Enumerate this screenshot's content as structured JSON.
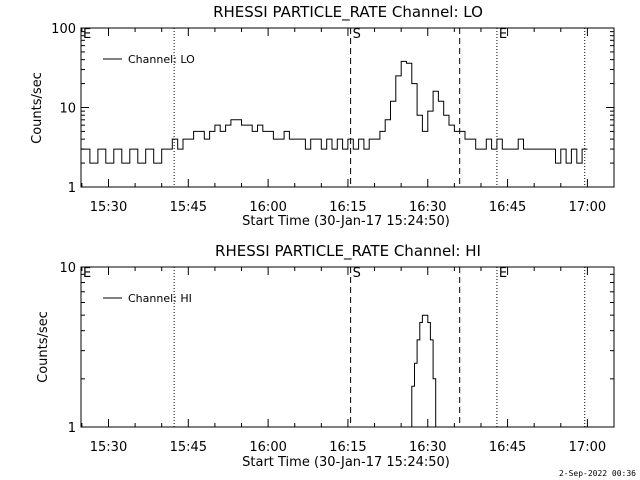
{
  "footer_date": "2-Sep-2022 00:36",
  "chart_data": [
    {
      "type": "line",
      "title": "RHESSI PARTICLE_RATE Channel: LO",
      "xlabel": "Start Time (30-Jan-17 15:24:50)",
      "ylabel": "Counts/sec",
      "yscale": "log",
      "ylim": [
        1,
        100
      ],
      "xlim": [
        "15:24:50",
        "17:05:00"
      ],
      "yticks": [
        "1",
        "10",
        "100"
      ],
      "xticks": [
        "15:30",
        "15:45",
        "16:00",
        "16:15",
        "16:30",
        "16:45",
        "17:00"
      ],
      "legend": "top-left",
      "series": [
        {
          "name": "Channel: LO",
          "x": [
            "15:24:50",
            "15:26:30",
            "15:28:00",
            "15:29:30",
            "15:31:00",
            "15:32:30",
            "15:34:00",
            "15:35:30",
            "15:37:00",
            "15:38:30",
            "15:40:00",
            "15:41:00",
            "15:42:00",
            "15:43:00",
            "15:44:00",
            "15:45:00",
            "15:46:00",
            "15:47:00",
            "15:48:00",
            "15:49:00",
            "15:50:00",
            "15:51:00",
            "15:52:00",
            "15:53:00",
            "15:54:00",
            "15:55:00",
            "15:56:00",
            "15:57:00",
            "15:58:00",
            "15:59:00",
            "16:00:00",
            "16:01:00",
            "16:02:00",
            "16:03:00",
            "16:04:00",
            "16:05:00",
            "16:06:00",
            "16:07:00",
            "16:08:00",
            "16:09:00",
            "16:10:00",
            "16:11:00",
            "16:12:00",
            "16:13:00",
            "16:14:00",
            "16:15:00",
            "16:16:00",
            "16:17:00",
            "16:18:00",
            "16:19:00",
            "16:20:00",
            "16:21:00",
            "16:22:00",
            "16:23:00",
            "16:24:00",
            "16:25:00",
            "16:26:00",
            "16:27:00",
            "16:28:00",
            "16:29:00",
            "16:30:00",
            "16:31:00",
            "16:32:00",
            "16:33:00",
            "16:34:00",
            "16:35:00",
            "16:36:00",
            "16:37:00",
            "16:38:00",
            "16:39:00",
            "16:40:00",
            "16:41:00",
            "16:42:00",
            "16:43:00",
            "16:44:00",
            "16:45:00",
            "16:46:00",
            "16:47:00",
            "16:48:00",
            "16:49:00",
            "16:50:00",
            "16:51:00",
            "16:52:00",
            "16:53:00",
            "16:54:00",
            "16:55:00",
            "16:56:00",
            "16:57:00",
            "16:58:00",
            "16:59:00"
          ],
          "values": [
            3,
            2,
            3,
            2,
            3,
            2,
            3,
            2,
            3,
            2,
            3,
            3,
            4,
            3,
            4,
            4,
            5,
            5,
            4,
            5,
            6,
            5,
            6,
            7,
            7,
            6,
            6,
            5,
            6,
            5,
            5,
            4,
            4,
            5,
            4,
            4,
            4,
            3,
            4,
            4,
            3,
            4,
            3,
            4,
            3,
            4,
            3,
            4,
            3,
            4,
            4,
            5,
            7,
            12,
            25,
            38,
            36,
            20,
            8,
            5,
            9,
            16,
            12,
            8,
            6,
            5,
            5,
            4,
            4,
            3,
            3,
            4,
            3,
            4,
            3,
            3,
            3,
            4,
            3,
            3,
            3,
            3,
            3,
            3,
            2,
            3,
            2,
            3,
            2,
            3
          ]
        }
      ],
      "annotations": [
        {
          "label": "E",
          "time": "15:24:50",
          "style": "dotted"
        },
        {
          "label": "",
          "time": "15:42:20",
          "style": "dotted"
        },
        {
          "label": "S",
          "time": "16:15:30",
          "style": "dashed"
        },
        {
          "label": "",
          "time": "16:36:00",
          "style": "dashed"
        },
        {
          "label": "E",
          "time": "16:43:00",
          "style": "dotted"
        },
        {
          "label": "",
          "time": "16:59:30",
          "style": "dotted"
        }
      ]
    },
    {
      "type": "line",
      "title": "RHESSI PARTICLE_RATE Channel: HI",
      "xlabel": "Start Time (30-Jan-17 15:24:50)",
      "ylabel": "Counts/sec",
      "yscale": "log",
      "ylim": [
        1,
        10
      ],
      "xlim": [
        "15:24:50",
        "17:05:00"
      ],
      "yticks": [
        "1",
        "10"
      ],
      "xticks": [
        "15:30",
        "15:45",
        "16:00",
        "16:15",
        "16:30",
        "16:45",
        "17:00"
      ],
      "legend": "top-left",
      "series": [
        {
          "name": "Channel: HI",
          "x": [
            "16:26:30",
            "16:27:00",
            "16:27:30",
            "16:28:00",
            "16:28:30",
            "16:29:00",
            "16:29:30",
            "16:30:00",
            "16:30:30",
            "16:31:00",
            "16:31:30"
          ],
          "values": [
            1,
            1.8,
            2.5,
            3.5,
            4.5,
            5,
            5,
            4.5,
            3.5,
            2,
            1
          ]
        }
      ],
      "annotations": [
        {
          "label": "E",
          "time": "15:24:50",
          "style": "dotted"
        },
        {
          "label": "",
          "time": "15:42:20",
          "style": "dotted"
        },
        {
          "label": "S",
          "time": "16:15:30",
          "style": "dashed"
        },
        {
          "label": "",
          "time": "16:36:00",
          "style": "dashed"
        },
        {
          "label": "E",
          "time": "16:43:00",
          "style": "dotted"
        },
        {
          "label": "",
          "time": "16:59:30",
          "style": "dotted"
        }
      ]
    }
  ]
}
